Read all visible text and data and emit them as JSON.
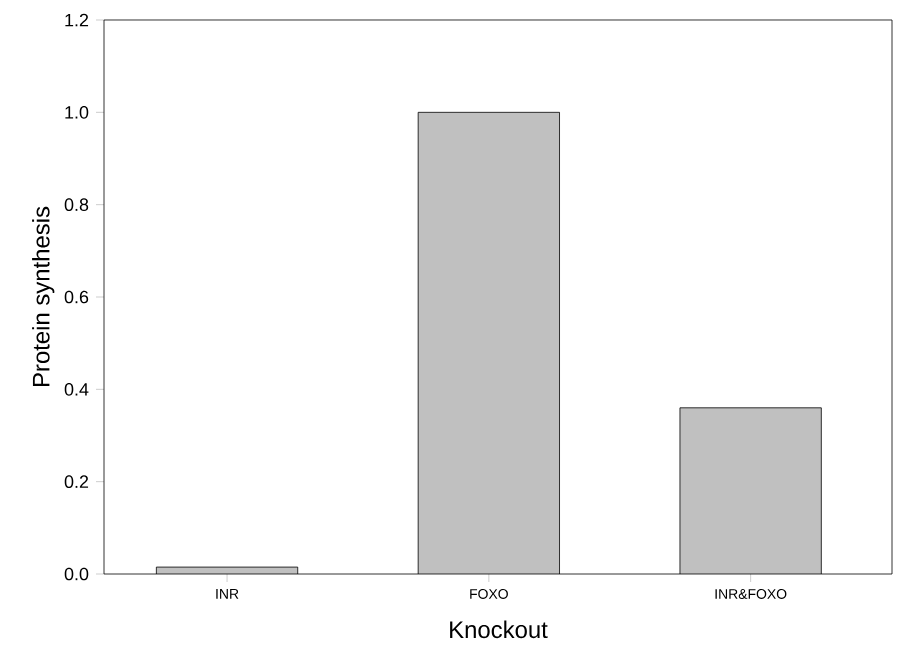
{
  "chart_data": {
    "type": "bar",
    "xlabel": "Knockout",
    "ylabel": "Protein synthesis",
    "categories": [
      "INR",
      "FOXO",
      "INR&FOXO"
    ],
    "values": [
      0.015,
      1.0,
      0.36
    ],
    "color": "#c0c0c0",
    "ylim": [
      0,
      1.2
    ],
    "yticks": [
      {
        "value": 0,
        "label": "0.0"
      },
      {
        "value": 0.2,
        "label": "0.2"
      },
      {
        "value": 0.4,
        "label": "0.4"
      },
      {
        "value": 0.6,
        "label": "0.6"
      },
      {
        "value": 0.8,
        "label": "0.8"
      },
      {
        "value": 1.0,
        "label": "1.0"
      },
      {
        "value": 1.2,
        "label": "1.2"
      }
    ]
  }
}
